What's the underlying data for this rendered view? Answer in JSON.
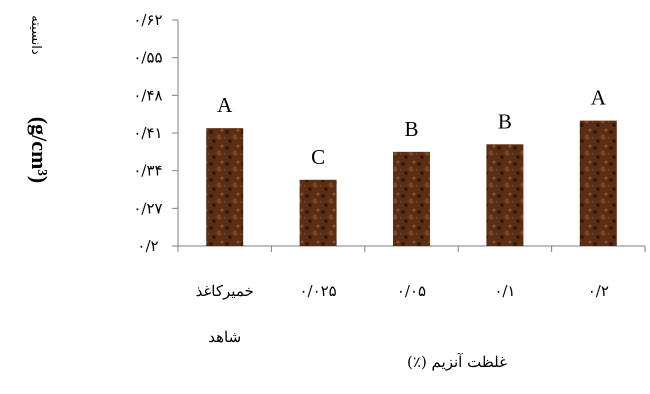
{
  "chart_data": {
    "type": "bar",
    "categories": [
      "خمیرکاغذ شاهد",
      "۰/۰۲۵",
      "۰/۰۵",
      "۰/۱",
      "۰/۲"
    ],
    "values": [
      0.419,
      0.323,
      0.375,
      0.389,
      0.433
    ],
    "significance_labels": [
      "A",
      "C",
      "B",
      "B",
      "A"
    ],
    "xlabel": "غلظت آنزیم (٪)",
    "ylabel": "دانسیته",
    "ylabel_unit": "(g/cm³)",
    "ylim": [
      0.2,
      0.62
    ],
    "yticks": [
      0.2,
      0.27,
      0.34,
      0.41,
      0.48,
      0.55,
      0.62
    ],
    "ytick_labels": [
      "۰/۲",
      "۰/۲۷",
      "۰/۳۴",
      "۰/۴۱",
      "۰/۴۸",
      "۰/۵۵",
      "۰/۶۲"
    ],
    "bar_color": "#5a2e14",
    "grid": false,
    "legend": "none"
  }
}
